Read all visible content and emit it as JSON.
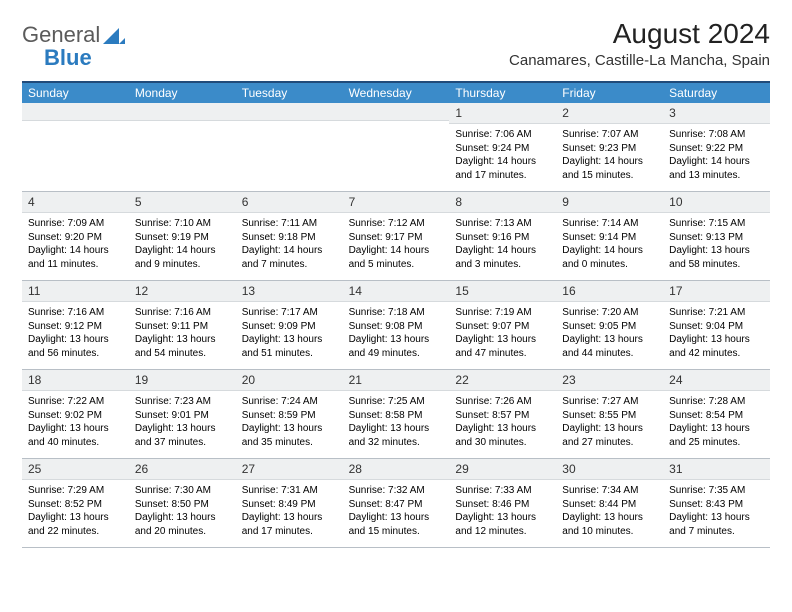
{
  "logo": {
    "text1": "General",
    "text2": "Blue",
    "tri_color": "#2b7bbf"
  },
  "title": "August 2024",
  "location": "Canamares, Castille-La Mancha, Spain",
  "header_bg": "#3b8bc9",
  "header_border": "#204b7a",
  "numrow_bg": "#eef0f1",
  "weekdays": [
    "Sunday",
    "Monday",
    "Tuesday",
    "Wednesday",
    "Thursday",
    "Friday",
    "Saturday"
  ],
  "weeks": [
    [
      null,
      null,
      null,
      null,
      {
        "n": "1",
        "sr": "7:06 AM",
        "ss": "9:24 PM",
        "dl": "14 hours and 17 minutes."
      },
      {
        "n": "2",
        "sr": "7:07 AM",
        "ss": "9:23 PM",
        "dl": "14 hours and 15 minutes."
      },
      {
        "n": "3",
        "sr": "7:08 AM",
        "ss": "9:22 PM",
        "dl": "14 hours and 13 minutes."
      }
    ],
    [
      {
        "n": "4",
        "sr": "7:09 AM",
        "ss": "9:20 PM",
        "dl": "14 hours and 11 minutes."
      },
      {
        "n": "5",
        "sr": "7:10 AM",
        "ss": "9:19 PM",
        "dl": "14 hours and 9 minutes."
      },
      {
        "n": "6",
        "sr": "7:11 AM",
        "ss": "9:18 PM",
        "dl": "14 hours and 7 minutes."
      },
      {
        "n": "7",
        "sr": "7:12 AM",
        "ss": "9:17 PM",
        "dl": "14 hours and 5 minutes."
      },
      {
        "n": "8",
        "sr": "7:13 AM",
        "ss": "9:16 PM",
        "dl": "14 hours and 3 minutes."
      },
      {
        "n": "9",
        "sr": "7:14 AM",
        "ss": "9:14 PM",
        "dl": "14 hours and 0 minutes."
      },
      {
        "n": "10",
        "sr": "7:15 AM",
        "ss": "9:13 PM",
        "dl": "13 hours and 58 minutes."
      }
    ],
    [
      {
        "n": "11",
        "sr": "7:16 AM",
        "ss": "9:12 PM",
        "dl": "13 hours and 56 minutes."
      },
      {
        "n": "12",
        "sr": "7:16 AM",
        "ss": "9:11 PM",
        "dl": "13 hours and 54 minutes."
      },
      {
        "n": "13",
        "sr": "7:17 AM",
        "ss": "9:09 PM",
        "dl": "13 hours and 51 minutes."
      },
      {
        "n": "14",
        "sr": "7:18 AM",
        "ss": "9:08 PM",
        "dl": "13 hours and 49 minutes."
      },
      {
        "n": "15",
        "sr": "7:19 AM",
        "ss": "9:07 PM",
        "dl": "13 hours and 47 minutes."
      },
      {
        "n": "16",
        "sr": "7:20 AM",
        "ss": "9:05 PM",
        "dl": "13 hours and 44 minutes."
      },
      {
        "n": "17",
        "sr": "7:21 AM",
        "ss": "9:04 PM",
        "dl": "13 hours and 42 minutes."
      }
    ],
    [
      {
        "n": "18",
        "sr": "7:22 AM",
        "ss": "9:02 PM",
        "dl": "13 hours and 40 minutes."
      },
      {
        "n": "19",
        "sr": "7:23 AM",
        "ss": "9:01 PM",
        "dl": "13 hours and 37 minutes."
      },
      {
        "n": "20",
        "sr": "7:24 AM",
        "ss": "8:59 PM",
        "dl": "13 hours and 35 minutes."
      },
      {
        "n": "21",
        "sr": "7:25 AM",
        "ss": "8:58 PM",
        "dl": "13 hours and 32 minutes."
      },
      {
        "n": "22",
        "sr": "7:26 AM",
        "ss": "8:57 PM",
        "dl": "13 hours and 30 minutes."
      },
      {
        "n": "23",
        "sr": "7:27 AM",
        "ss": "8:55 PM",
        "dl": "13 hours and 27 minutes."
      },
      {
        "n": "24",
        "sr": "7:28 AM",
        "ss": "8:54 PM",
        "dl": "13 hours and 25 minutes."
      }
    ],
    [
      {
        "n": "25",
        "sr": "7:29 AM",
        "ss": "8:52 PM",
        "dl": "13 hours and 22 minutes."
      },
      {
        "n": "26",
        "sr": "7:30 AM",
        "ss": "8:50 PM",
        "dl": "13 hours and 20 minutes."
      },
      {
        "n": "27",
        "sr": "7:31 AM",
        "ss": "8:49 PM",
        "dl": "13 hours and 17 minutes."
      },
      {
        "n": "28",
        "sr": "7:32 AM",
        "ss": "8:47 PM",
        "dl": "13 hours and 15 minutes."
      },
      {
        "n": "29",
        "sr": "7:33 AM",
        "ss": "8:46 PM",
        "dl": "13 hours and 12 minutes."
      },
      {
        "n": "30",
        "sr": "7:34 AM",
        "ss": "8:44 PM",
        "dl": "13 hours and 10 minutes."
      },
      {
        "n": "31",
        "sr": "7:35 AM",
        "ss": "8:43 PM",
        "dl": "13 hours and 7 minutes."
      }
    ]
  ],
  "labels": {
    "sunrise": "Sunrise: ",
    "sunset": "Sunset: ",
    "daylight": "Daylight: "
  }
}
